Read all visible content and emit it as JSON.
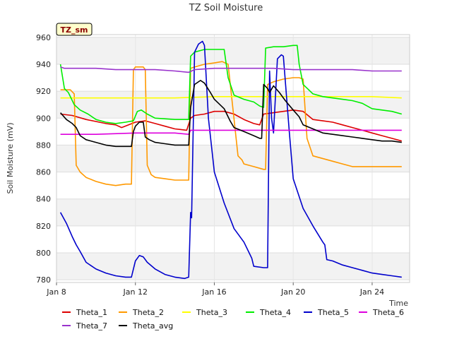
{
  "chart_data": {
    "type": "line",
    "title": "TZ Soil Moisture",
    "xlabel": "Time",
    "ylabel": "Soil Moisture (mV)",
    "site_tag": "TZ_sm",
    "xlim": [
      8.0,
      25.9
    ],
    "ylim": [
      778,
      962
    ],
    "x_ticks": [
      8,
      12,
      16,
      20,
      24
    ],
    "x_tick_labels": [
      "Jan 8",
      "Jan 12",
      "Jan 16",
      "Jan 20",
      "Jan 24"
    ],
    "y_ticks": [
      780,
      800,
      820,
      840,
      860,
      880,
      900,
      920,
      940,
      960
    ],
    "grid_bands": true,
    "legend_position": "bottom",
    "series": [
      {
        "name": "Theta_1",
        "color": "#dd0000",
        "x": [
          8.2,
          8.8,
          9.5,
          10.5,
          11.0,
          11.3,
          12.0,
          12.5,
          13.0,
          13.5,
          14.0,
          14.6,
          14.8,
          15.0,
          15.5,
          16.0,
          16.5,
          17.0,
          17.5,
          18.0,
          18.3,
          18.5,
          19.0,
          19.5,
          20.0,
          20.5,
          21.0,
          21.5,
          22.0,
          22.5,
          23.0,
          23.5,
          24.0,
          24.5,
          25.0,
          25.5
        ],
        "y": [
          903,
          902,
          899,
          896,
          895,
          893,
          897,
          898,
          896,
          894,
          892,
          891,
          900,
          902,
          903,
          905,
          905,
          903,
          899,
          896,
          895,
          903,
          904,
          905,
          906,
          905,
          899,
          898,
          897,
          895,
          893,
          891,
          889,
          887,
          885,
          883
        ]
      },
      {
        "name": "Theta_2",
        "color": "#ff9900",
        "x": [
          8.2,
          8.7,
          8.9,
          9.0,
          9.2,
          9.5,
          10.0,
          10.5,
          11.0,
          11.5,
          11.8,
          11.9,
          12.0,
          12.4,
          12.5,
          12.6,
          12.8,
          13.0,
          13.5,
          14.0,
          14.6,
          14.7,
          14.8,
          15.0,
          15.5,
          16.0,
          16.4,
          16.7,
          17.2,
          17.4,
          17.5,
          18.0,
          18.5,
          18.6,
          18.7,
          19.0,
          19.5,
          20.0,
          20.3,
          20.5,
          20.7,
          21.0,
          22.0,
          22.5,
          23.0,
          24.0,
          25.0,
          25.5
        ],
        "y": [
          921,
          921,
          918,
          865,
          860,
          856,
          853,
          851,
          850,
          851,
          851,
          936,
          938,
          938,
          936,
          865,
          858,
          856,
          855,
          854,
          854,
          854,
          937,
          938,
          940,
          941,
          942,
          940,
          872,
          869,
          866,
          864,
          862,
          862,
          925,
          927,
          929,
          930,
          930,
          929,
          885,
          872,
          868,
          866,
          864,
          864,
          864,
          864
        ]
      },
      {
        "name": "Theta_3",
        "color": "#ffff00",
        "x": [
          8.2,
          10.0,
          12.0,
          14.0,
          16.0,
          18.0,
          20.0,
          22.0,
          24.0,
          25.5
        ],
        "y": [
          915,
          915,
          915,
          915,
          916,
          916,
          916,
          916,
          916,
          915
        ]
      },
      {
        "name": "Theta_4",
        "color": "#00ee00",
        "x": [
          8.2,
          8.4,
          8.6,
          8.9,
          9.2,
          9.6,
          10.0,
          10.5,
          11.0,
          11.5,
          11.9,
          12.1,
          12.3,
          12.6,
          13.0,
          14.0,
          14.6,
          14.7,
          14.8,
          15.0,
          15.5,
          16.0,
          16.5,
          16.7,
          17.0,
          17.5,
          18.0,
          18.3,
          18.5,
          18.6,
          19.0,
          19.5,
          20.0,
          20.2,
          20.3,
          20.5,
          21.0,
          21.5,
          22.0,
          22.5,
          23.0,
          23.5,
          24.0,
          24.5,
          25.0,
          25.5
        ],
        "y": [
          940,
          922,
          919,
          910,
          906,
          903,
          899,
          897,
          896,
          897,
          898,
          905,
          906,
          903,
          900,
          899,
          899,
          899,
          946,
          949,
          951,
          951,
          951,
          930,
          917,
          914,
          912,
          909,
          908,
          952,
          953,
          953,
          954,
          954,
          940,
          925,
          918,
          916,
          915,
          914,
          913,
          911,
          907,
          906,
          905,
          903
        ]
      },
      {
        "name": "Theta_5",
        "color": "#0000cc",
        "x": [
          8.2,
          8.5,
          8.8,
          9.0,
          9.2,
          9.5,
          10.0,
          10.5,
          11.0,
          11.5,
          11.8,
          11.9,
          12.0,
          12.2,
          12.4,
          12.6,
          13.0,
          13.5,
          14.0,
          14.5,
          14.7,
          14.8,
          14.85,
          15.0,
          15.2,
          15.4,
          15.5,
          15.7,
          16.0,
          16.5,
          17.0,
          17.5,
          17.8,
          17.9,
          18.0,
          18.5,
          18.7,
          18.8,
          18.9,
          19.0,
          19.2,
          19.4,
          19.5,
          19.8,
          20.0,
          20.5,
          21.0,
          21.5,
          21.6,
          21.7,
          22.0,
          22.5,
          23.0,
          23.5,
          24.0,
          24.5,
          25.0,
          25.5
        ],
        "y": [
          830,
          822,
          812,
          806,
          801,
          793,
          788,
          785,
          783,
          782,
          782,
          788,
          794,
          798,
          797,
          793,
          788,
          784,
          782,
          781,
          782,
          830,
          826,
          949,
          955,
          957,
          954,
          900,
          860,
          837,
          818,
          808,
          799,
          796,
          790,
          789,
          789,
          935,
          900,
          889,
          944,
          947,
          946,
          890,
          855,
          833,
          820,
          808,
          806,
          795,
          794,
          791,
          789,
          787,
          785,
          784,
          783,
          782
        ]
      },
      {
        "name": "Theta_6",
        "color": "#dd00dd",
        "x": [
          8.2,
          10.0,
          12.0,
          14.0,
          14.7,
          14.8,
          16.0,
          18.0,
          20.0,
          22.0,
          24.0,
          25.5
        ],
        "y": [
          888,
          888,
          889,
          889,
          888,
          891,
          891,
          891,
          891,
          891,
          891,
          891
        ]
      },
      {
        "name": "Theta_7",
        "color": "#9933cc",
        "x": [
          8.2,
          8.4,
          9.0,
          10.0,
          11.0,
          12.0,
          13.0,
          14.0,
          14.7,
          15.0,
          16.0,
          17.0,
          18.0,
          19.0,
          20.0,
          21.0,
          22.0,
          23.0,
          24.0,
          25.5
        ],
        "y": [
          938,
          937,
          937,
          937,
          936,
          936,
          936,
          935,
          934,
          936,
          937,
          937,
          937,
          937,
          936,
          936,
          936,
          936,
          935,
          935
        ]
      },
      {
        "name": "Theta_avg",
        "color": "#000000",
        "x": [
          8.2,
          8.5,
          8.8,
          9.0,
          9.2,
          9.5,
          10.0,
          10.5,
          11.0,
          11.5,
          11.8,
          11.9,
          12.0,
          12.2,
          12.4,
          12.5,
          12.7,
          13.0,
          13.5,
          14.0,
          14.6,
          14.7,
          14.8,
          15.0,
          15.3,
          15.5,
          15.8,
          16.0,
          16.5,
          16.8,
          17.0,
          17.5,
          18.0,
          18.3,
          18.4,
          18.5,
          18.7,
          18.8,
          19.0,
          19.3,
          19.6,
          20.0,
          20.3,
          20.5,
          21.0,
          21.5,
          22.0,
          22.5,
          23.0,
          23.5,
          24.0,
          24.5,
          25.0,
          25.5
        ],
        "y": [
          904,
          899,
          896,
          893,
          887,
          884,
          882,
          880,
          879,
          879,
          879,
          890,
          894,
          897,
          897,
          886,
          884,
          882,
          881,
          880,
          880,
          880,
          908,
          925,
          928,
          926,
          919,
          914,
          907,
          898,
          893,
          890,
          887,
          885,
          885,
          925,
          922,
          919,
          924,
          919,
          913,
          906,
          901,
          895,
          892,
          889,
          888,
          887,
          886,
          885,
          884,
          883,
          883,
          882
        ]
      }
    ]
  }
}
